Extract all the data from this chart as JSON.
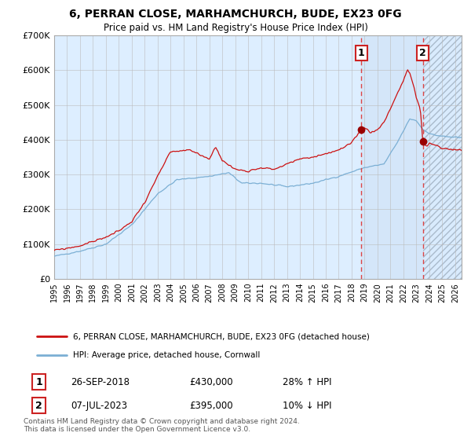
{
  "title": "6, PERRAN CLOSE, MARHAMCHURCH, BUDE, EX23 0FG",
  "subtitle": "Price paid vs. HM Land Registry's House Price Index (HPI)",
  "legend_line1": "6, PERRAN CLOSE, MARHAMCHURCH, BUDE, EX23 0FG (detached house)",
  "legend_line2": "HPI: Average price, detached house, Cornwall",
  "annotation1_label": "1",
  "annotation1_date": "26-SEP-2018",
  "annotation1_price": "£430,000",
  "annotation1_hpi": "28% ↑ HPI",
  "annotation2_label": "2",
  "annotation2_date": "07-JUL-2023",
  "annotation2_price": "£395,000",
  "annotation2_hpi": "10% ↓ HPI",
  "footer": "Contains HM Land Registry data © Crown copyright and database right 2024.\nThis data is licensed under the Open Government Licence v3.0.",
  "hpi_color": "#7bafd4",
  "price_color": "#cc1111",
  "dot_color": "#990000",
  "bg_color": "#ddeeff",
  "grid_color": "#bbbbbb",
  "vline_color": "#dd4444",
  "annotation_box_color": "#cc2222",
  "ylim_max": 700000,
  "xlim_min": 1995,
  "xlim_max": 2026.5,
  "sale1_year": 2018.74,
  "sale1_price": 430000,
  "sale2_year": 2023.51,
  "sale2_price": 395000
}
